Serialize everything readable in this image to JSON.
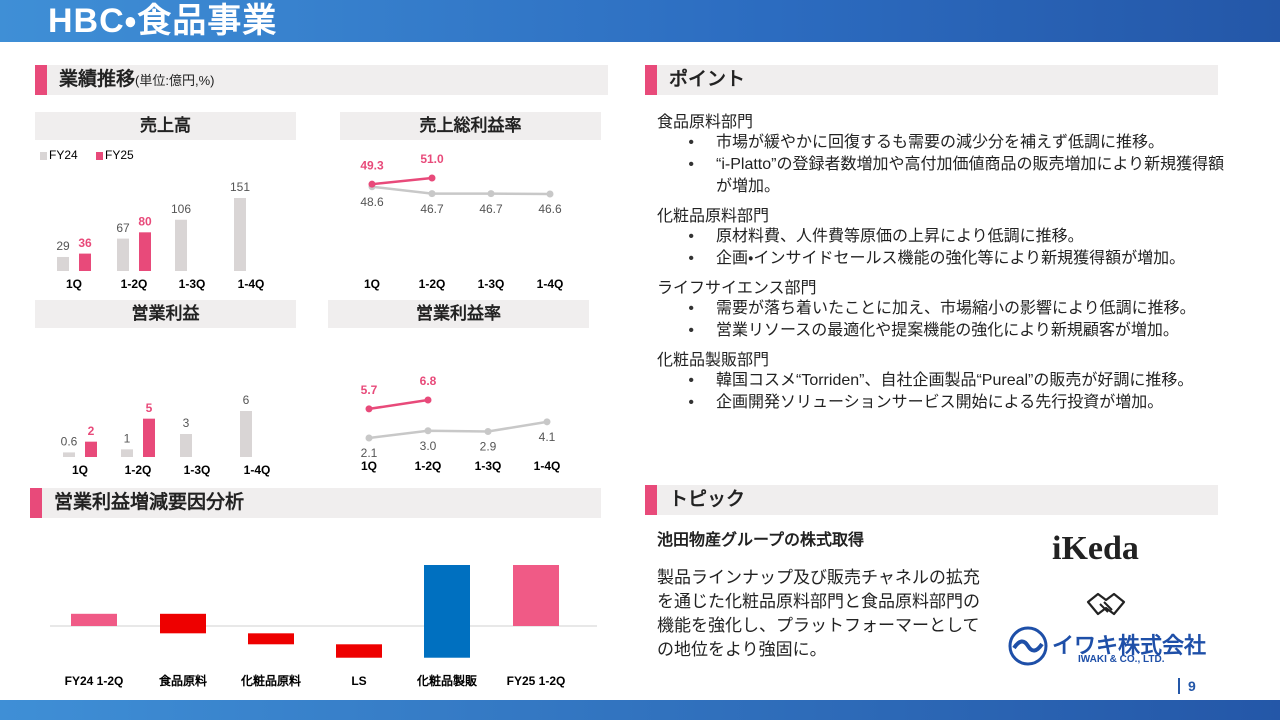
{
  "header": {
    "title": "HBC・食品事業"
  },
  "performance": {
    "title": "業績推移",
    "unit": "(単位:億円,%)"
  },
  "chart_data": [
    {
      "type": "bar",
      "title": "売上高",
      "categories": [
        "1Q",
        "1-2Q",
        "1-3Q",
        "1-4Q"
      ],
      "legend": "top-left",
      "series": [
        {
          "name": "FY24",
          "color": "#d9d5d5",
          "values": [
            29,
            67,
            106,
            151
          ]
        },
        {
          "name": "FY25",
          "color": "#e84a7a",
          "values": [
            36,
            80,
            null,
            null
          ]
        }
      ]
    },
    {
      "type": "line",
      "title": "売上総利益率",
      "categories": [
        "1Q",
        "1-2Q",
        "1-3Q",
        "1-4Q"
      ],
      "series": [
        {
          "color": "#c8c8c8",
          "values": [
            48.6,
            46.7,
            46.7,
            46.6
          ]
        },
        {
          "color": "#e84a7a",
          "values": [
            49.3,
            51.0,
            null,
            null
          ],
          "value_labels": [
            "49.3",
            "51.0",
            null,
            null
          ]
        }
      ]
    },
    {
      "type": "bar",
      "title": "営業利益",
      "categories": [
        "1Q",
        "1-2Q",
        "1-3Q",
        "1-4Q"
      ],
      "series": [
        {
          "color": "#d9d5d5",
          "values": [
            0.6,
            1,
            3,
            6
          ]
        },
        {
          "color": "#e84a7a",
          "values": [
            2,
            5,
            null,
            null
          ]
        }
      ]
    },
    {
      "type": "line",
      "title": "営業利益率",
      "categories": [
        "1Q",
        "1-2Q",
        "1-3Q",
        "1-4Q"
      ],
      "series": [
        {
          "color": "#c8c8c8",
          "values": [
            2.1,
            3.0,
            2.9,
            4.1
          ],
          "value_labels": [
            "2.1",
            "3.0",
            "2.9",
            "4.1"
          ]
        },
        {
          "color": "#e84a7a",
          "values": [
            5.7,
            6.8,
            null,
            null
          ]
        }
      ]
    },
    {
      "type": "waterfall",
      "title": "営業利益増減要因分析",
      "categories": [
        "FY24 1-2Q",
        "食品原料",
        "化粧品原料",
        "LS",
        "化粧品製販",
        "FY25 1-2Q"
      ],
      "values": [
        1,
        -1.6,
        -0.9,
        -1.1,
        7.6,
        5
      ],
      "colors": [
        "#f05a86",
        "#ee0000",
        "#ee0000",
        "#ee0000",
        "#0070c0",
        "#f05a86"
      ]
    }
  ],
  "points": {
    "title": "ポイント",
    "sections": [
      {
        "heading": "食品原料部門",
        "bullets": [
          "市場が緩やかに回復するも需要の減少分を補えず低調に推移。",
          "“i-Platto”の登録者数増加や高付加価値商品の販売増加により新規獲得額が増加。"
        ]
      },
      {
        "heading": "化粧品原料部門",
        "bullets": [
          "原材料費、人件費等原価の上昇により低調に推移。",
          "企画・インサイドセールス機能の強化等により新規獲得額が増加。"
        ]
      },
      {
        "heading": "ライフサイエンス部門",
        "bullets": [
          "需要が落ち着いたことに加え、市場縮小の影響により低調に推移。",
          "営業リソースの最適化や提案機能の強化により新規顧客が増加。"
        ]
      },
      {
        "heading": "化粧品製販部門",
        "bullets": [
          "韓国コスメ“Torriden”、自社企画製品“Pureal”の販売が好調に推移。",
          "企画開発ソリューションサービス開始による先行投資が増加。"
        ]
      }
    ]
  },
  "topic": {
    "title": "トピック",
    "heading": "池田物産グループの株式取得",
    "body": "製品ラインナップ及び販売チャネルの拡充を通じた化粧品原料部門と食品原料部門の機能を強化し、プラットフォーマーとしての地位をより強固に。",
    "logos": [
      "iKeda",
      "イワキ株式会社",
      "IWAKI & CO., LTD."
    ]
  },
  "footer": {
    "page": "9"
  }
}
